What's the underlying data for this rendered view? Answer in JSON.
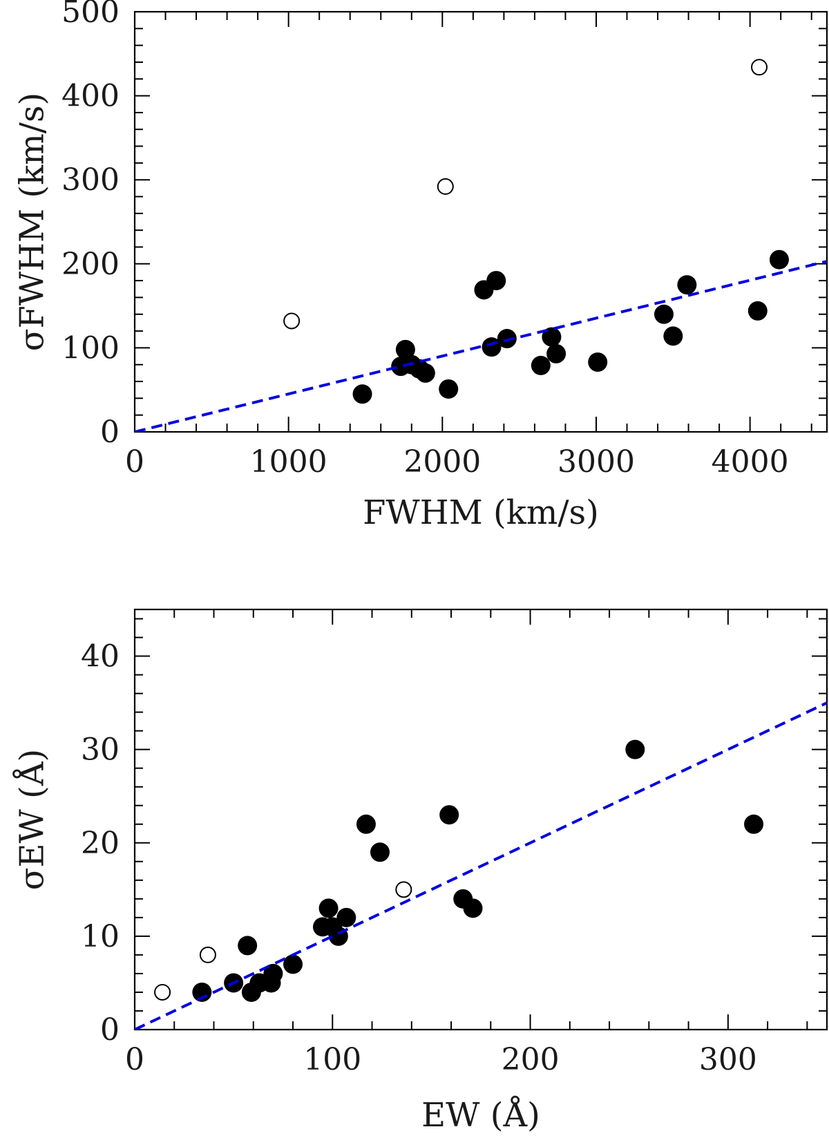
{
  "chart_data": [
    {
      "type": "scatter",
      "xlabel": "FWHM (km/s)",
      "ylabel": "σFWHM (km/s)",
      "xlim": [
        0,
        4500
      ],
      "ylim": [
        0,
        500
      ],
      "x_ticks": [
        0,
        1000,
        2000,
        3000,
        4000
      ],
      "y_ticks": [
        0,
        100,
        200,
        300,
        400,
        500
      ],
      "x_minor_step": 200,
      "y_minor_step": 20,
      "series": [
        {
          "marker": "filled-circle",
          "points": [
            [
              1480,
              45
            ],
            [
              1730,
              78
            ],
            [
              1760,
              98
            ],
            [
              1800,
              80
            ],
            [
              1850,
              75
            ],
            [
              1890,
              70
            ],
            [
              2040,
              51
            ],
            [
              2270,
              169
            ],
            [
              2320,
              101
            ],
            [
              2350,
              180
            ],
            [
              2420,
              111
            ],
            [
              2640,
              79
            ],
            [
              2710,
              113
            ],
            [
              2740,
              93
            ],
            [
              3010,
              83
            ],
            [
              3440,
              140
            ],
            [
              3500,
              114
            ],
            [
              3590,
              175
            ],
            [
              4050,
              144
            ],
            [
              4190,
              205
            ]
          ]
        },
        {
          "marker": "open-circle",
          "points": [
            [
              1020,
              132
            ],
            [
              2020,
              292
            ],
            [
              4060,
              434
            ]
          ]
        },
        {
          "marker": "dashed-line",
          "color": "#0000e0",
          "points": [
            [
              0,
              0
            ],
            [
              4500,
              203
            ]
          ]
        }
      ]
    },
    {
      "type": "scatter",
      "xlabel": "EW (Å)",
      "ylabel": "σEW (Å)",
      "xlim": [
        0,
        350
      ],
      "ylim": [
        0,
        45
      ],
      "x_ticks": [
        0,
        100,
        200,
        300
      ],
      "y_ticks": [
        0,
        10,
        20,
        30,
        40
      ],
      "x_minor_step": 20,
      "y_minor_step": 2,
      "series": [
        {
          "marker": "filled-circle",
          "points": [
            [
              34,
              4
            ],
            [
              50,
              5
            ],
            [
              57,
              9
            ],
            [
              59,
              4
            ],
            [
              63,
              5
            ],
            [
              69,
              5
            ],
            [
              70,
              6
            ],
            [
              80,
              7
            ],
            [
              95,
              11
            ],
            [
              98,
              13
            ],
            [
              100,
              11
            ],
            [
              103,
              10
            ],
            [
              107,
              12
            ],
            [
              117,
              22
            ],
            [
              124,
              19
            ],
            [
              159,
              23
            ],
            [
              166,
              14
            ],
            [
              171,
              13
            ],
            [
              253,
              30
            ],
            [
              313,
              22
            ]
          ]
        },
        {
          "marker": "open-circle",
          "points": [
            [
              14,
              4
            ],
            [
              37,
              8
            ],
            [
              136,
              15
            ]
          ]
        },
        {
          "marker": "dashed-line",
          "color": "#0000e0",
          "points": [
            [
              0,
              0
            ],
            [
              350,
              35
            ]
          ]
        }
      ]
    }
  ]
}
